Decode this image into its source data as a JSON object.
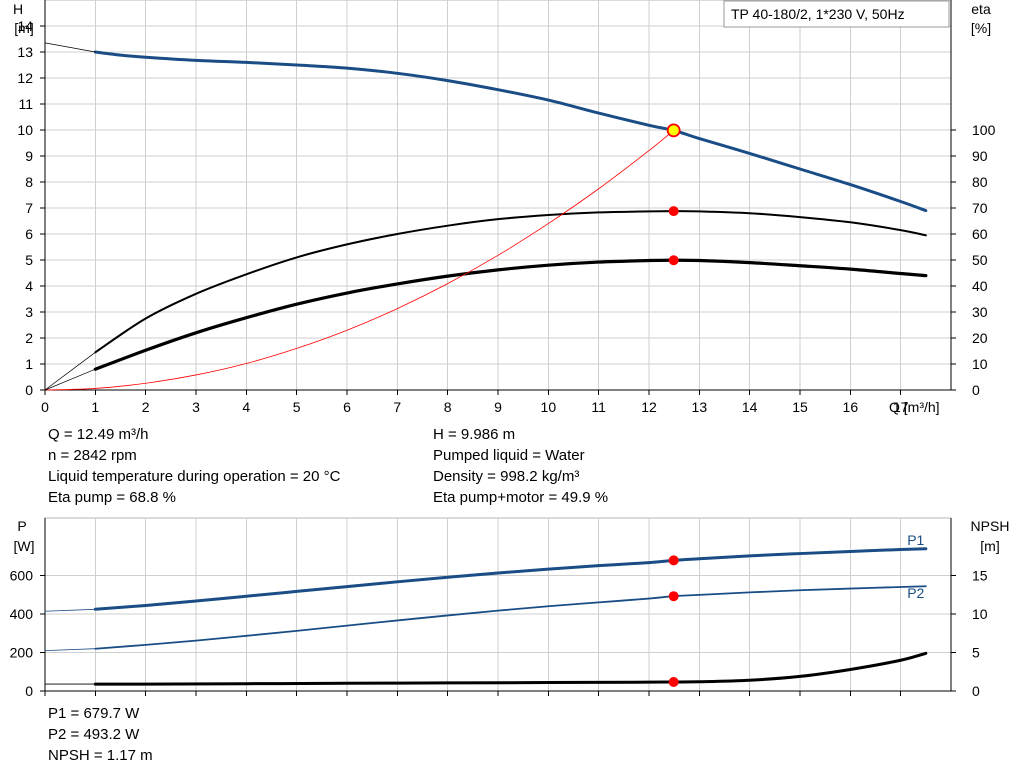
{
  "chart_data": [
    {
      "type": "line",
      "title_box": "TP 40-180/2, 1*230 V, 50Hz",
      "x_axis": {
        "label": "Q [m³/h]",
        "range": [
          0,
          18
        ],
        "ticks": [
          0,
          1,
          2,
          3,
          4,
          5,
          6,
          7,
          8,
          9,
          10,
          11,
          12,
          13,
          14,
          15,
          16,
          17
        ]
      },
      "y_left": {
        "label_line1": "H",
        "label_line2": "[m]",
        "range": [
          0,
          15
        ],
        "ticks": [
          0,
          1,
          2,
          3,
          4,
          5,
          6,
          7,
          8,
          9,
          10,
          11,
          12,
          13,
          14
        ]
      },
      "y_right": {
        "label_line1": "eta",
        "label_line2": "[%]",
        "range": [
          0,
          150
        ],
        "ticks": [
          0,
          10,
          20,
          30,
          40,
          50,
          60,
          70,
          80,
          90,
          100
        ]
      },
      "grid": true,
      "series": [
        {
          "name": "H",
          "axis": "left",
          "color": "#1a4d86",
          "width": 3,
          "x": [
            1,
            1.5,
            2,
            3,
            4,
            5,
            6,
            7,
            8,
            9,
            10,
            11,
            12,
            12.49,
            13,
            14,
            15,
            16,
            17,
            17.5
          ],
          "y": [
            13.0,
            12.88,
            12.8,
            12.68,
            12.6,
            12.5,
            12.38,
            12.18,
            11.9,
            11.55,
            11.15,
            10.65,
            10.18,
            9.986,
            9.67,
            9.1,
            8.5,
            7.9,
            7.25,
            6.9
          ]
        },
        {
          "name": "Eta pump",
          "axis": "right",
          "color": "#000000",
          "width": 2,
          "x": [
            1,
            2,
            3,
            4,
            5,
            6,
            7,
            8,
            9,
            10,
            11,
            12,
            12.49,
            13,
            14,
            15,
            16,
            17,
            17.5
          ],
          "y": [
            14.5,
            27.5,
            37.0,
            44.5,
            51.0,
            56.0,
            60.0,
            63.2,
            65.7,
            67.3,
            68.3,
            68.7,
            68.8,
            68.7,
            68.0,
            66.5,
            64.5,
            61.5,
            59.5
          ]
        },
        {
          "name": "Eta pump+motor",
          "axis": "right",
          "color": "#000000",
          "width": 3.2,
          "x": [
            1,
            2,
            3,
            4,
            5,
            6,
            7,
            8,
            9,
            10,
            11,
            12,
            12.49,
            13,
            14,
            15,
            16,
            17,
            17.5
          ],
          "y": [
            8.0,
            15.3,
            22.0,
            27.8,
            33.0,
            37.3,
            40.8,
            43.8,
            46.2,
            48.0,
            49.2,
            49.8,
            49.9,
            49.8,
            49.0,
            47.8,
            46.5,
            44.8,
            44.0
          ]
        },
        {
          "name": "System curve",
          "axis": "left",
          "color": "#ff0000",
          "width": 0.8,
          "x": [
            0,
            1,
            2,
            3,
            4,
            5,
            6,
            7,
            8,
            9,
            10,
            11,
            12,
            12.49
          ],
          "y": [
            0,
            0.06,
            0.26,
            0.58,
            1.02,
            1.6,
            2.3,
            3.13,
            4.09,
            5.18,
            6.4,
            7.74,
            9.21,
            9.986
          ]
        },
        {
          "name": "H extrapolation",
          "axis": "left",
          "color": "#000000",
          "width": 0.7,
          "x": [
            0,
            1
          ],
          "y": [
            13.35,
            13.0
          ]
        },
        {
          "name": "Eta extrapolation",
          "axis": "right",
          "color": "#000000",
          "width": 0.7,
          "x": [
            0,
            1,
            0,
            1
          ],
          "y": [
            0,
            14.5,
            0,
            8.0
          ]
        }
      ],
      "operating_point": {
        "x": 12.49,
        "h": 9.986,
        "eta_pump": 68.8,
        "eta_pump_motor": 49.9
      }
    },
    {
      "type": "line",
      "x_axis": {
        "range": [
          0,
          18
        ]
      },
      "y_left": {
        "label_line1": "P",
        "label_line2": "[W]",
        "range": [
          0,
          900
        ],
        "ticks": [
          0,
          200,
          400,
          600
        ]
      },
      "y_right": {
        "label_line1": "NPSH",
        "label_line2": "[m]",
        "range": [
          0,
          22.5
        ],
        "ticks": [
          0,
          5,
          10,
          15
        ]
      },
      "grid": true,
      "series": [
        {
          "name": "P1",
          "axis": "left",
          "color": "#1a4d86",
          "width": 3,
          "x": [
            1,
            2,
            3,
            4,
            5,
            6,
            7,
            8,
            9,
            10,
            11,
            12,
            12.49,
            13,
            14,
            15,
            16,
            17,
            17.5
          ],
          "y": [
            425,
            445,
            468,
            493,
            518,
            543,
            568,
            592,
            614,
            634,
            652,
            668,
            679.7,
            688,
            703,
            715,
            726,
            736,
            740
          ]
        },
        {
          "name": "P2",
          "axis": "left",
          "color": "#1a4d86",
          "width": 1.8,
          "x": [
            1,
            2,
            3,
            4,
            5,
            6,
            7,
            8,
            9,
            10,
            11,
            12,
            12.49,
            13,
            14,
            15,
            16,
            17,
            17.5
          ],
          "y": [
            220,
            240,
            262,
            287,
            313,
            340,
            367,
            393,
            418,
            441,
            461,
            481,
            493.2,
            500,
            513,
            524,
            533,
            541,
            545
          ]
        },
        {
          "name": "NPSH",
          "axis": "right",
          "color": "#000000",
          "width": 3,
          "x": [
            1,
            2,
            4,
            6,
            8,
            10,
            12,
            12.49,
            13,
            14,
            15,
            16,
            17,
            17.5
          ],
          "y": [
            0.9,
            0.9,
            0.95,
            1.0,
            1.05,
            1.1,
            1.15,
            1.17,
            1.2,
            1.4,
            1.9,
            2.8,
            4.0,
            4.9
          ]
        },
        {
          "name": "P1 extrapolation",
          "axis": "left",
          "color": "#1a4d86",
          "width": 0.8,
          "x": [
            0,
            1
          ],
          "y": [
            415,
            425
          ]
        },
        {
          "name": "P2 extrapolation",
          "axis": "left",
          "color": "#1a4d86",
          "width": 0.8,
          "x": [
            0,
            1
          ],
          "y": [
            210,
            220
          ]
        },
        {
          "name": "NPSH extrapolation",
          "axis": "right",
          "color": "#000000",
          "width": 0.8,
          "x": [
            0,
            1
          ],
          "y": [
            0.9,
            0.9
          ]
        }
      ],
      "curve_labels": [
        {
          "text": "P1",
          "x": 17.3,
          "value": 760,
          "axis": "left",
          "color": "#1a4d86"
        },
        {
          "text": "P2",
          "x": 17.3,
          "value": 485,
          "axis": "left",
          "color": "#1a4d86"
        }
      ],
      "operating_point": {
        "x": 12.49,
        "p1": 679.7,
        "p2": 493.2,
        "npsh": 1.17
      }
    }
  ],
  "info_left": [
    "Q = 12.49 m³/h",
    "n = 2842 rpm",
    "Liquid temperature during operation = 20 °C",
    "Eta pump = 68.8 %"
  ],
  "info_right": [
    "H = 9.986 m",
    "Pumped liquid = Water",
    "Density = 998.2 kg/m³",
    "Eta pump+motor = 49.9 %"
  ],
  "info_bottom": [
    "P1 = 679.7 W",
    "P2 = 493.2 W",
    "NPSH = 1.17 m"
  ],
  "colors": {
    "accent_curve": "#1a4d86",
    "marker": "#ff0000",
    "marker_yellow": "#ffff00"
  }
}
